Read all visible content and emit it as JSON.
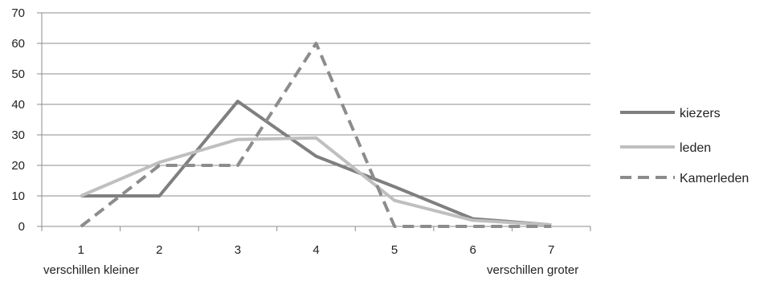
{
  "chart_data": {
    "type": "line",
    "x": [
      1,
      2,
      3,
      4,
      5,
      6,
      7
    ],
    "ylim": [
      0,
      70
    ],
    "yticks": [
      0,
      10,
      20,
      30,
      40,
      50,
      60,
      70
    ],
    "grid": true,
    "legend_position": "right",
    "axis_notes": {
      "left": "verschillen kleiner",
      "right": "verschillen groter"
    },
    "series": [
      {
        "name": "kiezers",
        "values": [
          10,
          10,
          41,
          23,
          13,
          2.5,
          0.5
        ],
        "color": "#7f7f7f",
        "dash": "solid"
      },
      {
        "name": "leden",
        "values": [
          10,
          21,
          28.5,
          29,
          8.5,
          2,
          0.5
        ],
        "color": "#bfbfbf",
        "dash": "solid"
      },
      {
        "name": "Kamerleden",
        "values": [
          0,
          20,
          20,
          60,
          0,
          0,
          0
        ],
        "color": "#8c8c8c",
        "dash": "dashed"
      }
    ]
  }
}
